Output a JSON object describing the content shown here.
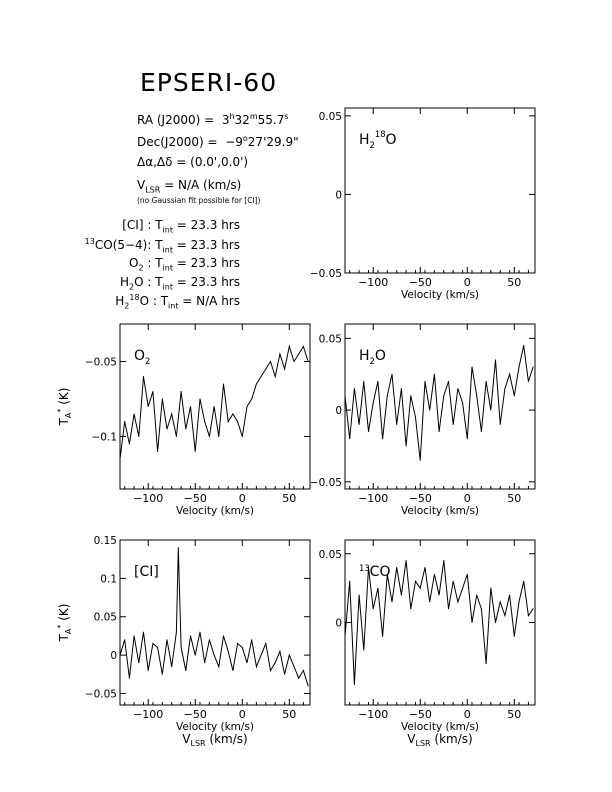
{
  "title": "EPSERI-60",
  "info": {
    "ra_label": "RA (J2000) =",
    "ra_h": "3",
    "ra_m": "32",
    "ra_s": "55.7",
    "dec_label": "Dec(J2000) =",
    "dec_d": "−9",
    "dec_m": "27",
    "dec_s": "29.9\"",
    "offset_label": "Δα,Δδ = (0.0',0.0')",
    "vlsr_text": " = N/A  (km/s)",
    "vlsr_note": "(no Gaussian fit possible for [CI])",
    "tint_ci": "[CI] : ",
    "tint_ci_val": " = 23.3 hrs",
    "tint_13co_pre": "CO(5−4): ",
    "tint_13co_val": " = 23.3 hrs",
    "tint_o2": "O",
    "tint_o2_val": " : ",
    "tint_o2_val2": " = 23.3 hrs",
    "tint_h2o": "O : ",
    "tint_h2o_val": " = 23.3 hrs",
    "tint_h218o": "O : ",
    "tint_h218o_val": " = N/A  hrs"
  },
  "chart_data": [
    {
      "id": "h218o",
      "type": "line",
      "label": "H218O",
      "xlabel": "Velocity (km/s)",
      "ylabel": "",
      "xlim": [
        -130,
        72
      ],
      "ylim": [
        -0.05,
        0.055
      ],
      "xticks": [
        -100,
        -50,
        0,
        50
      ],
      "xtick_labels": [
        "−100",
        "−50",
        "0",
        "50"
      ],
      "yticks": [
        0.05,
        0,
        -0.05
      ],
      "ytick_labels": [
        "0.05",
        "0",
        "−0.05"
      ],
      "ytick_side": "left",
      "series": []
    },
    {
      "id": "o2",
      "type": "line",
      "label": "O2",
      "xlabel": "Velocity (km/s)",
      "ylabel": "T*A (K)",
      "xlim": [
        -130,
        72
      ],
      "ylim": [
        -0.135,
        -0.025
      ],
      "xticks": [
        -100,
        -50,
        0,
        50
      ],
      "xtick_labels": [
        "−100",
        "−50",
        "0",
        "50"
      ],
      "yticks": [
        -0.05,
        -0.1
      ],
      "ytick_labels": [
        "−0.05",
        "−0.1"
      ],
      "ytick_side": "left",
      "series": [
        {
          "values_x": [
            -130,
            -125,
            -120,
            -115,
            -110,
            -105,
            -100,
            -95,
            -90,
            -85,
            -80,
            -75,
            -70,
            -65,
            -60,
            -55,
            -50,
            -45,
            -40,
            -35,
            -30,
            -25,
            -20,
            -15,
            -10,
            -5,
            0,
            5,
            10,
            15,
            20,
            25,
            30,
            35,
            40,
            45,
            50,
            55,
            60,
            65,
            70
          ],
          "values_y": [
            -0.115,
            -0.09,
            -0.105,
            -0.085,
            -0.1,
            -0.06,
            -0.08,
            -0.07,
            -0.11,
            -0.075,
            -0.095,
            -0.085,
            -0.1,
            -0.07,
            -0.095,
            -0.08,
            -0.11,
            -0.075,
            -0.09,
            -0.1,
            -0.08,
            -0.1,
            -0.065,
            -0.09,
            -0.085,
            -0.09,
            -0.1,
            -0.08,
            -0.075,
            -0.065,
            -0.06,
            -0.055,
            -0.05,
            -0.06,
            -0.045,
            -0.055,
            -0.04,
            -0.05,
            -0.045,
            -0.04,
            -0.05
          ]
        }
      ]
    },
    {
      "id": "h2o",
      "type": "line",
      "label": "H2O",
      "xlabel": "Velocity (km/s)",
      "ylabel": "",
      "xlim": [
        -130,
        72
      ],
      "ylim": [
        -0.055,
        0.06
      ],
      "xticks": [
        -100,
        -50,
        0,
        50
      ],
      "xtick_labels": [
        "−100",
        "−50",
        "0",
        "50"
      ],
      "yticks": [
        0.05,
        0,
        -0.05
      ],
      "ytick_labels": [
        "0.05",
        "0",
        "−0.05"
      ],
      "ytick_side": "left",
      "series": [
        {
          "values_x": [
            -130,
            -125,
            -120,
            -115,
            -110,
            -105,
            -100,
            -95,
            -90,
            -85,
            -80,
            -75,
            -70,
            -65,
            -60,
            -55,
            -50,
            -45,
            -40,
            -35,
            -30,
            -25,
            -20,
            -15,
            -10,
            -5,
            0,
            5,
            10,
            15,
            20,
            25,
            30,
            35,
            40,
            45,
            50,
            55,
            60,
            65,
            70
          ],
          "values_y": [
            0.01,
            -0.02,
            0.015,
            -0.01,
            0.02,
            -0.015,
            0.005,
            0.02,
            -0.02,
            0.01,
            0.025,
            -0.01,
            0.015,
            -0.025,
            0.01,
            -0.005,
            -0.035,
            0.02,
            0.0,
            0.025,
            -0.015,
            0.01,
            0.02,
            -0.01,
            0.015,
            0.005,
            -0.02,
            0.03,
            0.01,
            -0.015,
            0.02,
            0.0,
            0.035,
            -0.01,
            0.015,
            0.025,
            0.01,
            0.03,
            0.045,
            0.02,
            0.03
          ]
        }
      ]
    },
    {
      "id": "ci",
      "type": "line",
      "label": "[CI]",
      "xlabel": "Velocity (km/s)",
      "ylabel": "T*A (K)",
      "xlim": [
        -130,
        72
      ],
      "ylim": [
        -0.065,
        0.15
      ],
      "xticks": [
        -100,
        -50,
        0,
        50
      ],
      "xtick_labels": [
        "−100",
        "−50",
        "0",
        "50"
      ],
      "yticks": [
        0.15,
        0.1,
        0.05,
        0,
        -0.05
      ],
      "ytick_labels": [
        "0.15",
        "0.1",
        "0.05",
        "0",
        "−0.05"
      ],
      "ytick_side": "left",
      "series": [
        {
          "values_x": [
            -130,
            -125,
            -120,
            -115,
            -110,
            -105,
            -100,
            -95,
            -90,
            -85,
            -80,
            -75,
            -70,
            -68,
            -65,
            -60,
            -55,
            -50,
            -45,
            -40,
            -35,
            -30,
            -25,
            -20,
            -15,
            -10,
            -5,
            0,
            5,
            10,
            15,
            20,
            25,
            30,
            35,
            40,
            45,
            50,
            55,
            60,
            65,
            70
          ],
          "values_y": [
            0.0,
            0.02,
            -0.03,
            0.025,
            -0.01,
            0.03,
            -0.02,
            0.015,
            0.01,
            -0.025,
            0.02,
            -0.015,
            0.03,
            0.14,
            0.01,
            -0.02,
            0.025,
            0.0,
            0.03,
            -0.01,
            0.02,
            0.0,
            -0.015,
            0.025,
            0.005,
            -0.02,
            0.015,
            0.01,
            -0.01,
            0.02,
            -0.015,
            0.0,
            0.015,
            -0.02,
            -0.01,
            0.005,
            -0.025,
            0.0,
            -0.015,
            -0.03,
            -0.02,
            -0.04
          ]
        }
      ]
    },
    {
      "id": "13co",
      "type": "line",
      "label": "13CO",
      "xlabel": "Velocity (km/s)",
      "ylabel": "",
      "xlim": [
        -130,
        72
      ],
      "ylim": [
        -0.06,
        0.06
      ],
      "xticks": [
        -100,
        -50,
        0,
        50
      ],
      "xtick_labels": [
        "−100",
        "−50",
        "0",
        "50"
      ],
      "yticks": [
        0.05,
        0
      ],
      "ytick_labels": [
        "0.05",
        "0"
      ],
      "ytick_side": "left",
      "series": [
        {
          "values_x": [
            -130,
            -125,
            -120,
            -115,
            -110,
            -105,
            -100,
            -95,
            -90,
            -85,
            -80,
            -75,
            -70,
            -65,
            -60,
            -55,
            -50,
            -45,
            -40,
            -35,
            -30,
            -25,
            -20,
            -15,
            -10,
            -5,
            0,
            5,
            10,
            15,
            20,
            25,
            30,
            35,
            40,
            45,
            50,
            55,
            60,
            65,
            70
          ],
          "values_y": [
            -0.01,
            0.03,
            -0.045,
            0.02,
            -0.02,
            0.04,
            0.01,
            0.025,
            -0.01,
            0.035,
            0.015,
            0.04,
            0.02,
            0.045,
            0.01,
            0.03,
            0.025,
            0.04,
            0.015,
            0.035,
            0.02,
            0.045,
            0.01,
            0.03,
            0.015,
            0.025,
            0.035,
            0.0,
            0.02,
            0.01,
            -0.03,
            0.025,
            0.0,
            0.015,
            0.005,
            0.02,
            -0.01,
            0.015,
            0.03,
            0.005,
            0.01
          ]
        }
      ]
    }
  ],
  "axes_text": {
    "vlsr_bottom": "(km/s)"
  }
}
